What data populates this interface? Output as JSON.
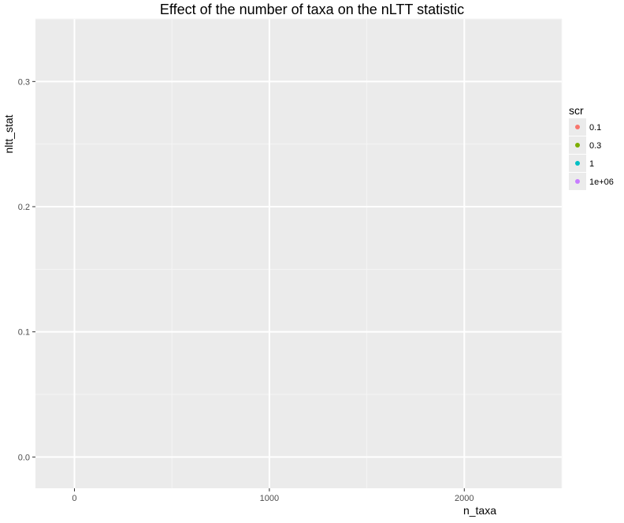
{
  "chart_data": {
    "type": "scatter",
    "title": "Effect of the number of taxa on the nLTT statistic",
    "xlabel": "n_taxa",
    "ylabel": "nltt_stat",
    "xlim": [
      -200,
      2500
    ],
    "ylim": [
      -0.025,
      0.35
    ],
    "x_ticks": [
      0,
      1000,
      2000
    ],
    "x_tick_labels": [
      "0",
      "1000",
      "2000"
    ],
    "y_ticks": [
      0.0,
      0.1,
      0.2,
      0.3
    ],
    "y_tick_labels": [
      "0.0",
      "0.1",
      "0.2",
      "0.3"
    ],
    "grid": true,
    "legend_position": "right",
    "legend": {
      "title": "scr",
      "entries": [
        {
          "label": "0.1",
          "color": "#F8766D"
        },
        {
          "label": "0.3",
          "color": "#7CAE00"
        },
        {
          "label": "1",
          "color": "#00BFC4"
        },
        {
          "label": "1e+06",
          "color": "#C77CFF"
        }
      ]
    },
    "series": []
  }
}
